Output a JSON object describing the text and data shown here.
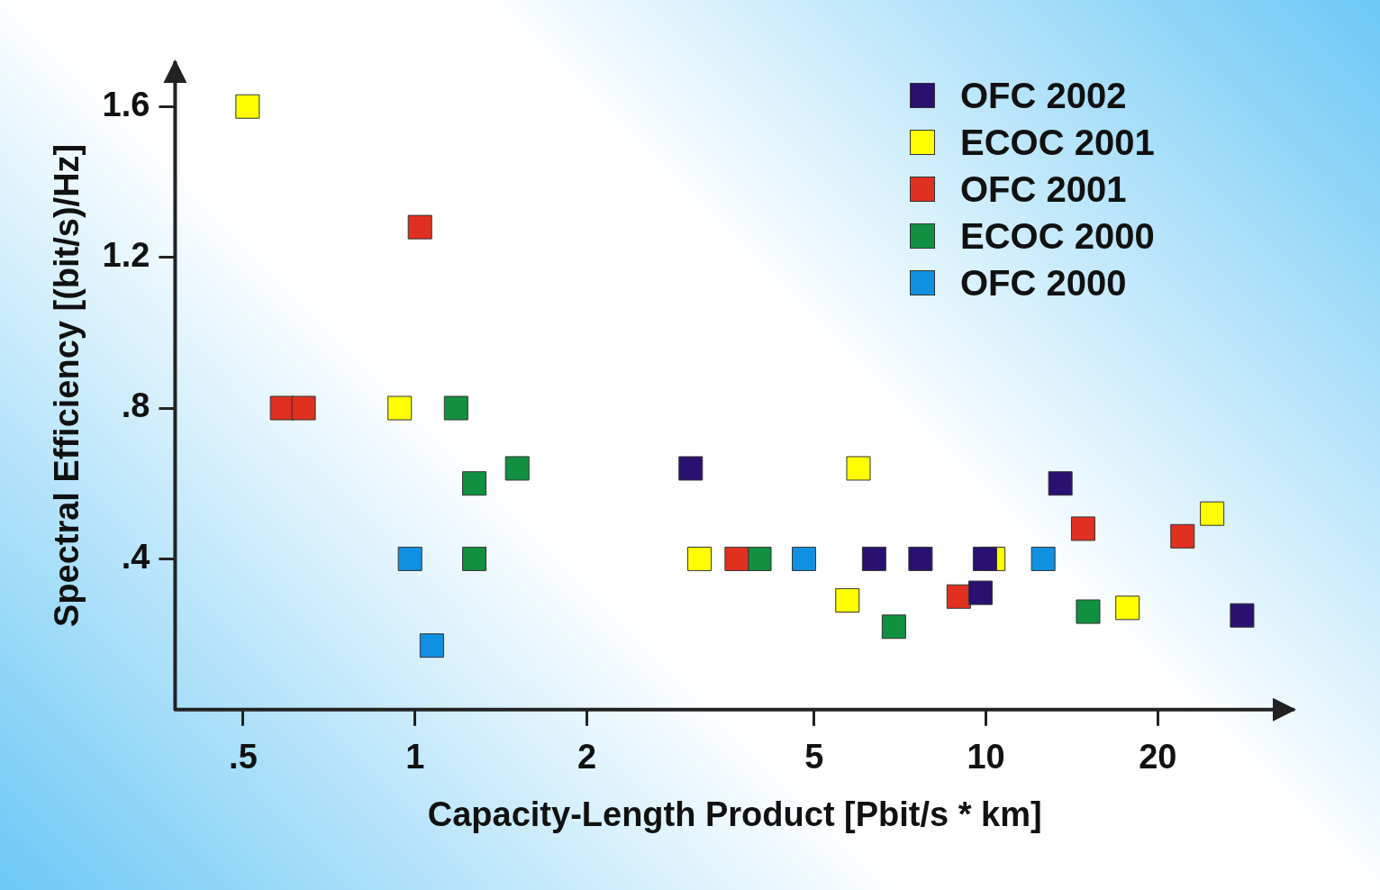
{
  "chart_data": {
    "type": "scatter",
    "xlabel": "Capacity-Length Product [Pbit/s * km]",
    "ylabel": "Spectral Efficiency [(bit/s)/Hz]",
    "log": "x",
    "xlim": [
      0.38,
      34.7
    ],
    "ylim": [
      0,
      1.72
    ],
    "xticks": [
      {
        "value": 0.5,
        "label": ".5"
      },
      1,
      2,
      5,
      10,
      20
    ],
    "yticks": [
      {
        "value": 0.4,
        "label": ".4"
      },
      {
        "value": 0.8,
        "label": ".8"
      },
      1.2,
      1.6
    ],
    "legend": "top right",
    "marker": "square",
    "series": [
      {
        "name": "OFC 2002",
        "color": "#2a1070",
        "x": [
          3.04,
          6.37,
          7.68,
          9.96,
          9.78,
          13.5,
          28.1
        ],
        "values": [
          0.64,
          0.4,
          0.4,
          0.4,
          0.31,
          0.6,
          0.25
        ]
      },
      {
        "name": "ECOC 2001",
        "color": "#ffff00",
        "x": [
          0.509,
          0.94,
          3.15,
          5.98,
          5.72,
          10.3,
          17.7,
          24.9
        ],
        "values": [
          1.6,
          0.8,
          0.4,
          0.64,
          0.29,
          0.4,
          0.27,
          0.52
        ]
      },
      {
        "name": "OFC 2001",
        "color": "#e03020",
        "x": [
          0.585,
          0.638,
          1.02,
          3.66,
          8.96,
          14.8,
          22.1
        ],
        "values": [
          0.8,
          0.8,
          1.28,
          0.4,
          0.3,
          0.48,
          0.46
        ]
      },
      {
        "name": "ECOC 2000",
        "color": "#109040",
        "x": [
          1.18,
          1.27,
          1.51,
          1.27,
          4.01,
          6.9,
          15.1
        ],
        "values": [
          0.8,
          0.6,
          0.64,
          0.4,
          0.4,
          0.22,
          0.26
        ]
      },
      {
        "name": "OFC 2000",
        "color": "#1090e0",
        "x": [
          0.98,
          1.07,
          4.8,
          12.6
        ],
        "values": [
          0.4,
          0.17,
          0.4,
          0.4
        ]
      }
    ]
  }
}
